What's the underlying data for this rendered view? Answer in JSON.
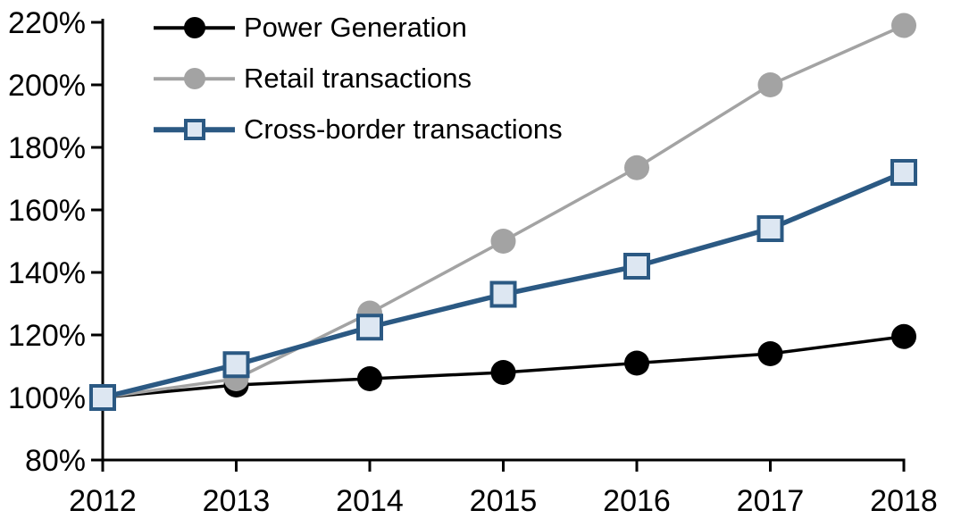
{
  "chart_data": {
    "type": "line",
    "title": "",
    "categories": [
      "2012",
      "2013",
      "2014",
      "2015",
      "2016",
      "2017",
      "2018"
    ],
    "series": [
      {
        "name": "Power Generation",
        "values": [
          100,
          104,
          106,
          108,
          111,
          114,
          119.5
        ],
        "color": "#000000",
        "line_width": 3.5,
        "marker": {
          "shape": "circle",
          "fill": "#000000",
          "stroke": "none",
          "size": 28
        }
      },
      {
        "name": "Retail transactions",
        "values": [
          100,
          106,
          127,
          150,
          173.5,
          200,
          219
        ],
        "color": "#A3A3A3",
        "line_width": 3.5,
        "marker": {
          "shape": "circle",
          "fill": "#A3A3A3",
          "stroke": "none",
          "size": 28
        }
      },
      {
        "name": "Cross-border transactions",
        "values": [
          100,
          110.5,
          122.5,
          133,
          142,
          154,
          172
        ],
        "color": "#2B5983",
        "line_width": 5.5,
        "marker": {
          "shape": "square",
          "fill": "#DDE7F2",
          "stroke": "#2B5983",
          "size": 26
        }
      }
    ],
    "y_axis": {
      "min": 80,
      "max": 220,
      "step": 20,
      "suffix": "%",
      "tick_labels": [
        "80%",
        "100%",
        "120%",
        "140%",
        "160%",
        "180%",
        "200%",
        "220%"
      ]
    },
    "x_axis": {
      "tick_labels": [
        "2012",
        "2013",
        "2014",
        "2015",
        "2016",
        "2017",
        "2018"
      ]
    },
    "legend_position": "top-left",
    "grid": false,
    "axis_color": "#000000",
    "background": "#FFFFFF"
  }
}
